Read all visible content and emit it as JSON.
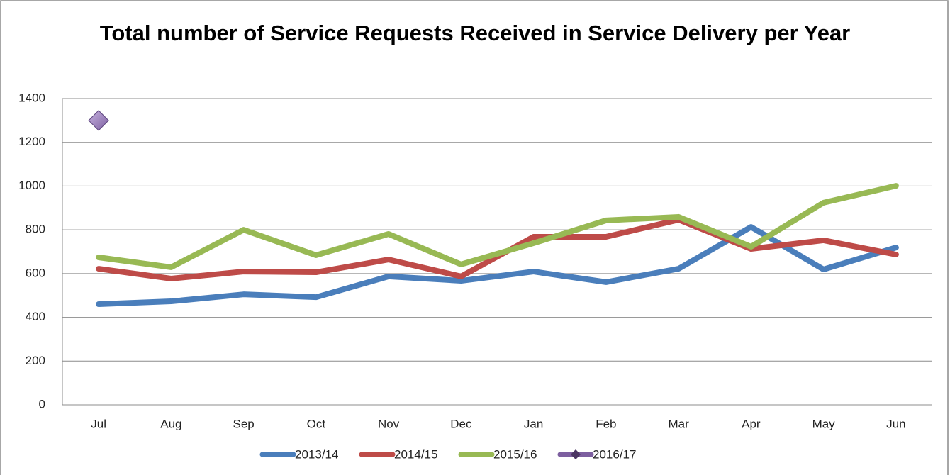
{
  "chart_data": {
    "type": "line",
    "title": "Total number of Service Requests Received in Service Delivery per Year",
    "categories": [
      "Jul",
      "Aug",
      "Sep",
      "Oct",
      "Nov",
      "Dec",
      "Jan",
      "Feb",
      "Mar",
      "Apr",
      "May",
      "Jun"
    ],
    "series": [
      {
        "name": "2013/14",
        "color": "#4a7ebb",
        "values": [
          460,
          473,
          505,
          492,
          587,
          567,
          609,
          561,
          622,
          813,
          619,
          719
        ]
      },
      {
        "name": "2014/15",
        "color": "#be4b48",
        "values": [
          622,
          577,
          609,
          606,
          664,
          587,
          768,
          768,
          846,
          713,
          752,
          687
        ]
      },
      {
        "name": "2015/16",
        "color": "#98b954",
        "values": [
          674,
          629,
          800,
          684,
          781,
          642,
          739,
          843,
          859,
          723,
          924,
          1001
        ]
      },
      {
        "name": "2016/17",
        "color": "#7d5fa0",
        "marker": "diamond",
        "values": [
          1300,
          null,
          null,
          null,
          null,
          null,
          null,
          null,
          null,
          null,
          null,
          null
        ]
      }
    ],
    "ylim": [
      0,
      1400
    ],
    "yticks": [
      0,
      200,
      400,
      600,
      800,
      1000,
      1200,
      1400
    ],
    "grid": true,
    "legend": "bottom"
  }
}
